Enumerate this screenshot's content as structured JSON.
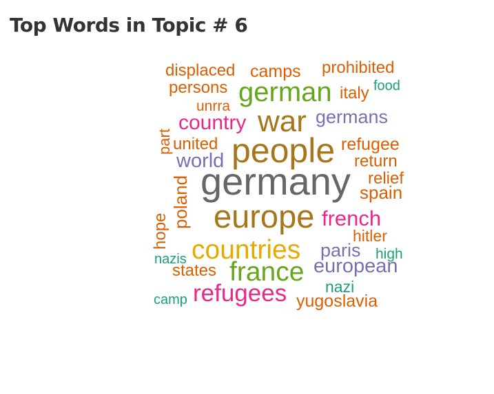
{
  "title": "Top Words in Topic # 6",
  "palette": {
    "gray": "#666666",
    "brown": "#A6761D",
    "orange": "#D95F02",
    "green": "#66A61E",
    "magenta": "#E7298A",
    "purple": "#7570B3",
    "teal": "#1B9E77",
    "gold": "#E6AB02"
  },
  "words": {
    "germany": "germany",
    "people": "people",
    "europe": "europe",
    "war": "war",
    "german": "german",
    "countries": "countries",
    "france": "france",
    "refugees": "refugees",
    "french": "french",
    "european": "european",
    "country": "country",
    "germans": "germans",
    "world": "world",
    "refugee": "refugee",
    "camps": "camps",
    "displaced": "displaced",
    "prohibited": "prohibited",
    "persons": "persons",
    "italy": "italy",
    "food": "food",
    "unrra": "unrra",
    "part": "part",
    "united": "united",
    "return": "return",
    "relief": "relief",
    "poland": "poland",
    "spain": "spain",
    "hope": "hope",
    "hitler": "hitler",
    "paris": "paris",
    "nazis": "nazis",
    "high": "high",
    "states": "states",
    "nazi": "nazi",
    "camp": "camp",
    "yugoslavia": "yugoslavia"
  }
}
